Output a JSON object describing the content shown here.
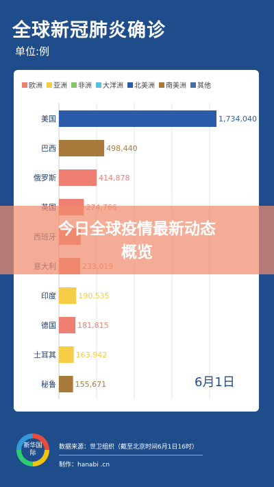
{
  "header": {
    "title": "全球新冠肺炎确诊",
    "unit": "单位:例"
  },
  "overlay": {
    "line1": "今日全球疫情最新动态",
    "line2": "概览"
  },
  "footer": {
    "logo_text": "新华国际",
    "source": "数据来源：世卫组织（截至北京时间6月1日16时）",
    "maker": "制作：hanabi .cn"
  },
  "chart_data": {
    "type": "bar",
    "orientation": "horizontal",
    "legend": [
      {
        "name": "欧洲",
        "color": "#ef7f72"
      },
      {
        "name": "亚洲",
        "color": "#f5cc45"
      },
      {
        "name": "非洲",
        "color": "#8cc36b"
      },
      {
        "name": "大洋洲",
        "color": "#5bc0d9"
      },
      {
        "name": "北美洲",
        "color": "#2b5caa"
      },
      {
        "name": "南美洲",
        "color": "#a87a3c"
      },
      {
        "name": "其他",
        "color": "#4a6fa5"
      }
    ],
    "legend_position": "top",
    "categories": [
      "美国",
      "巴西",
      "俄罗斯",
      "英国",
      "西班牙",
      "意大利",
      "印度",
      "德国",
      "土耳其",
      "秘鲁"
    ],
    "values": [
      1734040,
      498440,
      414878,
      274766,
      239479,
      233019,
      190535,
      181815,
      163942,
      155671
    ],
    "value_labels": [
      "1,734,040",
      "498,440",
      "414,878",
      "274,766",
      "",
      "233,019",
      "190,535",
      "181,815",
      "163,942",
      "155,671"
    ],
    "regions": [
      "北美洲",
      "南美洲",
      "欧洲",
      "欧洲",
      "欧洲",
      "欧洲",
      "亚洲",
      "欧洲",
      "亚洲",
      "南美洲"
    ],
    "xlim": [
      0,
      1734040
    ],
    "grid": true,
    "annotation": "6月1日"
  }
}
